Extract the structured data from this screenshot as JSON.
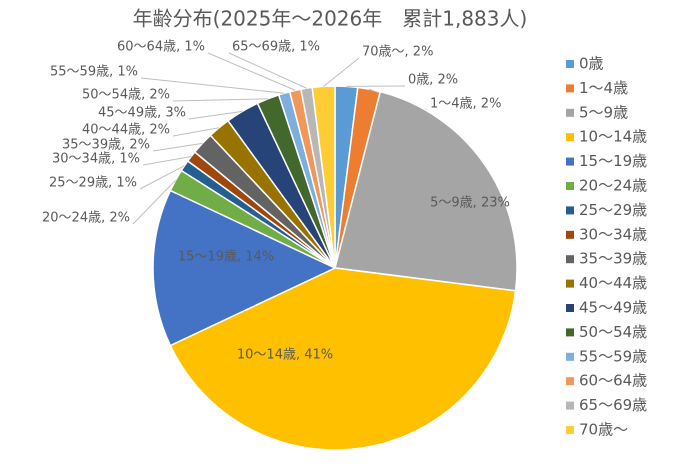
{
  "chart_data": {
    "type": "pie",
    "title": "年齢分布(2025年～2026年　累計1,883人)",
    "categories": [
      "0歳",
      "1～4歳",
      "5～9歳",
      "10～14歳",
      "15～19歳",
      "20～24歳",
      "25～29歳",
      "30～34歳",
      "35～39歳",
      "40～44歳",
      "45～49歳",
      "50～54歳",
      "55～59歳",
      "60～64歳",
      "65～69歳",
      "70歳～"
    ],
    "values": [
      2,
      2,
      23,
      41,
      14,
      2,
      1,
      1,
      2,
      2,
      3,
      2,
      1,
      1,
      1,
      2
    ],
    "value_labels": [
      "0歳, 2%",
      "1～4歳, 2%",
      "5～9歳, 23%",
      "10～14歳, 41%",
      "15～19歳, 14%",
      "20～24歳, 2%",
      "25～29歳, 1%",
      "30～34歳, 1%",
      "35～39歳, 2%",
      "40～44歳, 2%",
      "45～49歳, 3%",
      "50～54歳, 2%",
      "55～59歳, 1%",
      "60～64歳, 1%",
      "65～69歳, 1%",
      "70歳～, 2%"
    ],
    "colors": [
      "#5b9bd5",
      "#ed7d31",
      "#a5a5a5",
      "#ffc000",
      "#4472c4",
      "#70ad47",
      "#255e91",
      "#9e480e",
      "#636363",
      "#997300",
      "#264478",
      "#43682b",
      "#7cafdd",
      "#f1975a",
      "#b7b7b7",
      "#ffcd33"
    ],
    "legend": "right"
  }
}
